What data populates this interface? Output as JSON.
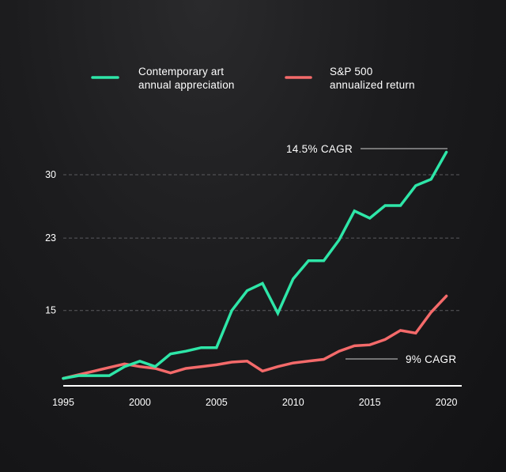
{
  "chart_data": {
    "type": "line",
    "title": "",
    "xlabel": "",
    "ylabel": "",
    "x": [
      1995,
      1996,
      1997,
      1998,
      1999,
      2000,
      2001,
      2002,
      2003,
      2004,
      2005,
      2006,
      2007,
      2008,
      2009,
      2010,
      2011,
      2012,
      2013,
      2014,
      2015,
      2016,
      2017,
      2018,
      2019,
      2020
    ],
    "xticks": [
      1995,
      2000,
      2005,
      2010,
      2015,
      2020
    ],
    "yticks": [
      15,
      23,
      30
    ],
    "ylim": [
      7.2,
      33.5
    ],
    "xlim": [
      1995,
      2021
    ],
    "grid": "horizontal-dashed",
    "legend_position": "top",
    "series": [
      {
        "name": "Contemporary art annual appreciation",
        "legend_lines": [
          "Contemporary art",
          "annual appreciation"
        ],
        "color": "#2ee6a8",
        "values": [
          7.5,
          7.8,
          7.8,
          7.8,
          8.8,
          9.4,
          8.8,
          10.2,
          10.5,
          10.9,
          10.9,
          15.0,
          17.2,
          18.0,
          14.7,
          18.5,
          20.5,
          20.5,
          22.8,
          26.0,
          25.2,
          26.6,
          26.6,
          28.8,
          29.5,
          32.5
        ]
      },
      {
        "name": "S&P 500 annualized return",
        "legend_lines": [
          "S&P 500",
          "annualized return"
        ],
        "color": "#f46a6a",
        "values": [
          7.5,
          7.9,
          8.3,
          8.7,
          9.1,
          8.8,
          8.6,
          8.1,
          8.6,
          8.8,
          9.0,
          9.3,
          9.4,
          8.3,
          8.8,
          9.2,
          9.4,
          9.6,
          10.5,
          11.1,
          11.2,
          11.8,
          12.8,
          12.5,
          14.8,
          16.6
        ]
      }
    ],
    "annotations": [
      {
        "text": "14.5% CAGR",
        "series": 0
      },
      {
        "text": "9% CAGR",
        "series": 1
      }
    ]
  }
}
